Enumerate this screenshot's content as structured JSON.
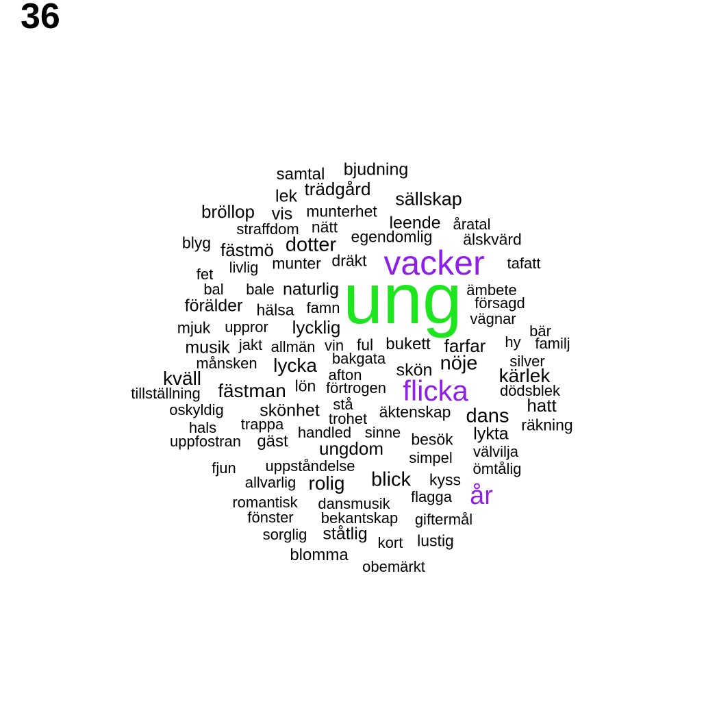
{
  "page_number": "36",
  "colors": {
    "default": "#000000",
    "highlight_purple": "#8f1ee6",
    "highlight_green": "#1ee61e"
  },
  "words": [
    {
      "text": "ung",
      "color": "highlight_green"
    },
    {
      "text": "vacker",
      "color": "highlight_purple"
    },
    {
      "text": "flicka",
      "color": "highlight_purple"
    },
    {
      "text": "år",
      "color": "highlight_purple"
    },
    {
      "text": "samtal"
    },
    {
      "text": "bjudning"
    },
    {
      "text": "trädgård"
    },
    {
      "text": "lek"
    },
    {
      "text": "sällskap"
    },
    {
      "text": "bröllop"
    },
    {
      "text": "vis"
    },
    {
      "text": "munterhet"
    },
    {
      "text": "leende"
    },
    {
      "text": "åratal"
    },
    {
      "text": "straffdom"
    },
    {
      "text": "nätt"
    },
    {
      "text": "egendomlig"
    },
    {
      "text": "älskvärd"
    },
    {
      "text": "blyg"
    },
    {
      "text": "fästmö"
    },
    {
      "text": "dotter"
    },
    {
      "text": "tafatt"
    },
    {
      "text": "livlig"
    },
    {
      "text": "munter"
    },
    {
      "text": "dräkt"
    },
    {
      "text": "fet"
    },
    {
      "text": "bal"
    },
    {
      "text": "bale"
    },
    {
      "text": "naturlig"
    },
    {
      "text": "ämbete"
    },
    {
      "text": "förälder"
    },
    {
      "text": "hälsa"
    },
    {
      "text": "famn"
    },
    {
      "text": "försagd"
    },
    {
      "text": "vägnar"
    },
    {
      "text": "mjuk"
    },
    {
      "text": "uppror"
    },
    {
      "text": "lycklig"
    },
    {
      "text": "bär"
    },
    {
      "text": "musik"
    },
    {
      "text": "jakt"
    },
    {
      "text": "allmän"
    },
    {
      "text": "vin"
    },
    {
      "text": "ful"
    },
    {
      "text": "bukett"
    },
    {
      "text": "farfar"
    },
    {
      "text": "hy"
    },
    {
      "text": "familj"
    },
    {
      "text": "månsken"
    },
    {
      "text": "bakgata"
    },
    {
      "text": "silver"
    },
    {
      "text": "lycka"
    },
    {
      "text": "nöje"
    },
    {
      "text": "kväll"
    },
    {
      "text": "afton"
    },
    {
      "text": "skön"
    },
    {
      "text": "kärlek"
    },
    {
      "text": "tillställning"
    },
    {
      "text": "fästman"
    },
    {
      "text": "lön"
    },
    {
      "text": "förtrogen"
    },
    {
      "text": "dödsblek"
    },
    {
      "text": "oskyldig"
    },
    {
      "text": "stå"
    },
    {
      "text": "hatt"
    },
    {
      "text": "skönhet"
    },
    {
      "text": "trohet"
    },
    {
      "text": "äktenskap"
    },
    {
      "text": "dans"
    },
    {
      "text": "trappa"
    },
    {
      "text": "räkning"
    },
    {
      "text": "hals"
    },
    {
      "text": "handled"
    },
    {
      "text": "sinne"
    },
    {
      "text": "lykta"
    },
    {
      "text": "uppfostran"
    },
    {
      "text": "gäst"
    },
    {
      "text": "besök"
    },
    {
      "text": "ungdom"
    },
    {
      "text": "välvilja"
    },
    {
      "text": "simpel"
    },
    {
      "text": "fjun"
    },
    {
      "text": "uppståndelse"
    },
    {
      "text": "ömtålig"
    },
    {
      "text": "allvarlig"
    },
    {
      "text": "rolig"
    },
    {
      "text": "blick"
    },
    {
      "text": "kyss"
    },
    {
      "text": "flagga"
    },
    {
      "text": "romantisk"
    },
    {
      "text": "dansmusik"
    },
    {
      "text": "fönster"
    },
    {
      "text": "bekantskap"
    },
    {
      "text": "giftermål"
    },
    {
      "text": "sorglig"
    },
    {
      "text": "ståtlig"
    },
    {
      "text": "kort"
    },
    {
      "text": "lustig"
    },
    {
      "text": "blomma"
    },
    {
      "text": "obemärkt"
    }
  ]
}
